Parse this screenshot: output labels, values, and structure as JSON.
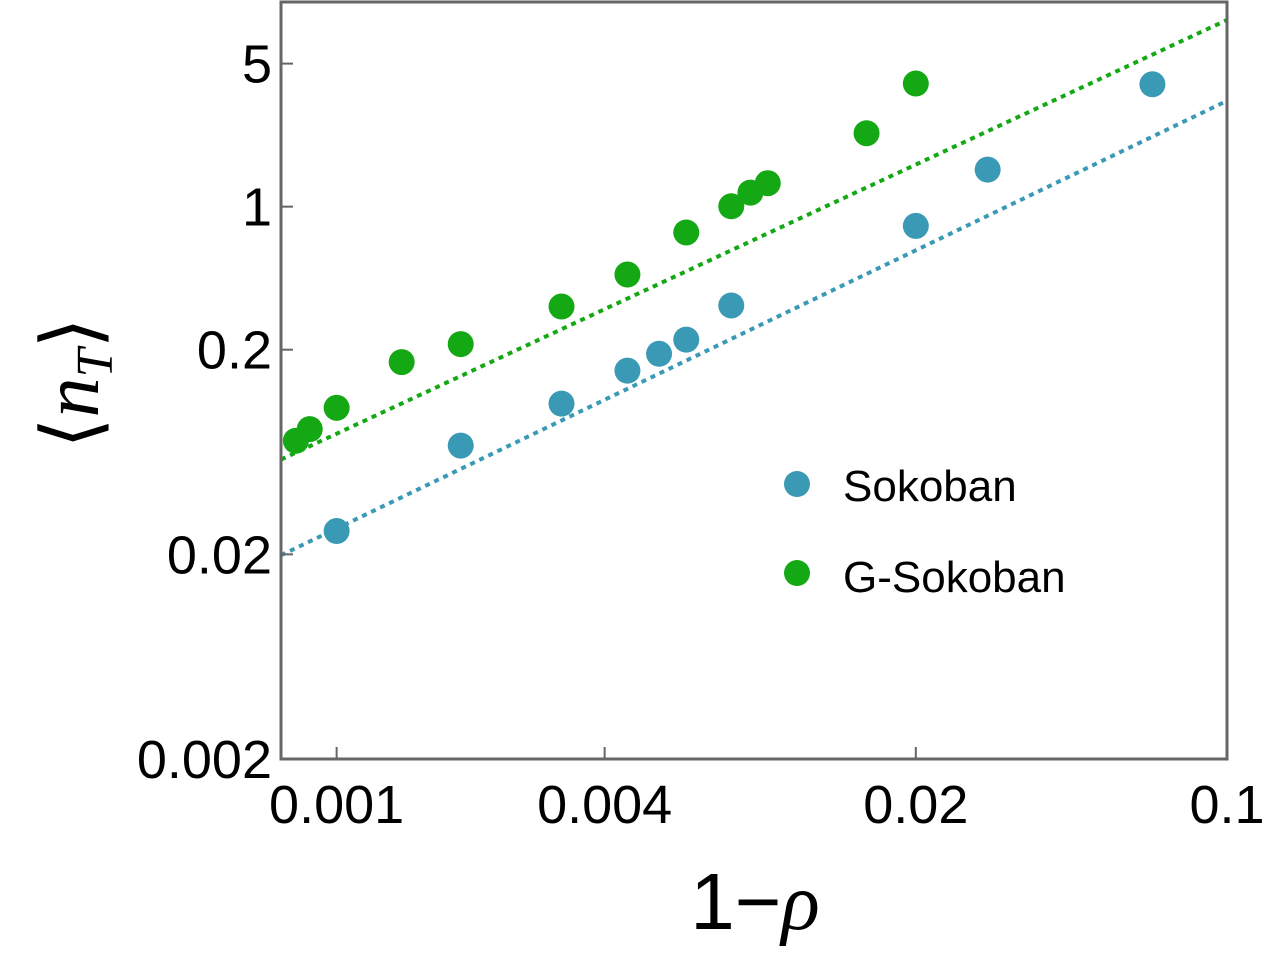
{
  "chart_data": {
    "type": "scatter",
    "scale": "log-log",
    "title": "",
    "xlabel": "1−ρ",
    "ylabel": "⟨nT⟩",
    "xlabel_parts": {
      "prefix": "1−",
      "symbol": "ρ"
    },
    "ylabel_parts": {
      "open": "⟨",
      "symbol": "n",
      "sub": "T",
      "close": "⟩"
    },
    "xlim": [
      0.00075,
      0.1
    ],
    "ylim": [
      0.002,
      10
    ],
    "x_ticks": [
      {
        "value": 0.001,
        "label": "0.001"
      },
      {
        "value": 0.004,
        "label": "0.004"
      },
      {
        "value": 0.02,
        "label": "0.02"
      },
      {
        "value": 0.1,
        "label": "0.1"
      }
    ],
    "y_ticks": [
      {
        "value": 0.002,
        "label": "0.002"
      },
      {
        "value": 0.02,
        "label": "0.02"
      },
      {
        "value": 0.2,
        "label": "0.2"
      },
      {
        "value": 1,
        "label": "1"
      },
      {
        "value": 5,
        "label": "5"
      }
    ],
    "legend_position": "center-right",
    "series": [
      {
        "name": "Sokoban",
        "color": "#3a9ab5",
        "x": [
          0.001,
          0.0019,
          0.0032,
          0.0045,
          0.0053,
          0.0061,
          0.0077,
          0.02,
          0.029,
          0.068
        ],
        "y": [
          0.026,
          0.068,
          0.109,
          0.158,
          0.191,
          0.224,
          0.329,
          0.805,
          1.516,
          3.963
        ],
        "fit": {
          "x": [
            0.00075,
            0.1
          ],
          "y": [
            0.0198,
            3.29
          ]
        }
      },
      {
        "name": "G-Sokoban",
        "color": "#14a814",
        "x": [
          0.00081,
          0.00087,
          0.001,
          0.0014,
          0.0019,
          0.0032,
          0.0045,
          0.0061,
          0.0077,
          0.0085,
          0.0093,
          0.0155,
          0.02
        ],
        "y": [
          0.0718,
          0.0818,
          0.104,
          0.174,
          0.213,
          0.325,
          0.466,
          0.748,
          1.004,
          1.171,
          1.302,
          2.285,
          3.995
        ],
        "fit": {
          "x": [
            0.00075,
            0.1
          ],
          "y": [
            0.0581,
            8.17
          ]
        }
      }
    ]
  }
}
